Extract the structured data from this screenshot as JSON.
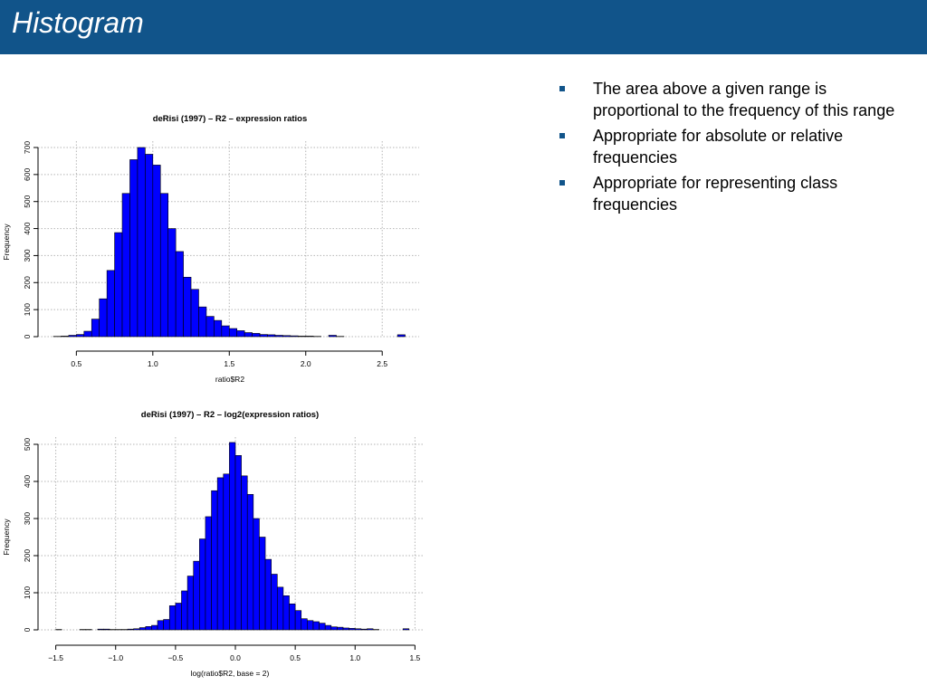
{
  "slide": {
    "title": "Histogram",
    "accent_color": "#11548a",
    "bullets": [
      "The area above a given range is proportional to the frequency of this range",
      "Appropriate for absolute or relative frequencies",
      "Appropriate for representing class frequencies"
    ]
  },
  "chart_data": [
    {
      "type": "bar",
      "subtype": "histogram",
      "title": "deRisi (1997) – R2 – expression ratios",
      "xlabel": "ratio$R2",
      "ylabel": "Frequency",
      "xlim": [
        0.35,
        2.7
      ],
      "ylim": [
        0,
        700
      ],
      "xticks": [
        0.5,
        1.0,
        1.5,
        2.0,
        2.5
      ],
      "xtick_labels": [
        "0.5",
        "1.0",
        "1.5",
        "2.0",
        "2.5"
      ],
      "yticks": [
        0,
        100,
        200,
        300,
        400,
        500,
        600,
        700
      ],
      "ytick_labels": [
        "0",
        "100",
        "200",
        "300",
        "400",
        "500",
        "600",
        "700"
      ],
      "grid": true,
      "bar_color": "#0000ff",
      "bin_width": 0.05,
      "bin_starts": [
        0.35,
        0.4,
        0.45,
        0.5,
        0.55,
        0.6,
        0.65,
        0.7,
        0.75,
        0.8,
        0.85,
        0.9,
        0.95,
        1.0,
        1.05,
        1.1,
        1.15,
        1.2,
        1.25,
        1.3,
        1.35,
        1.4,
        1.45,
        1.5,
        1.55,
        1.6,
        1.65,
        1.7,
        1.75,
        1.8,
        1.85,
        1.9,
        1.95,
        2.0,
        2.05,
        2.1,
        2.15,
        2.2,
        2.25,
        2.3,
        2.35,
        2.4,
        2.45,
        2.5,
        2.55,
        2.6
      ],
      "values": [
        1,
        2,
        5,
        8,
        20,
        65,
        140,
        245,
        385,
        530,
        655,
        700,
        675,
        635,
        530,
        400,
        315,
        220,
        175,
        110,
        75,
        60,
        40,
        30,
        22,
        15,
        12,
        8,
        7,
        5,
        4,
        3,
        2,
        2,
        1,
        0,
        5,
        1,
        0,
        0,
        0,
        0,
        0,
        0,
        0,
        7
      ]
    },
    {
      "type": "bar",
      "subtype": "histogram",
      "title": "deRisi (1997) – R2 – log2(expression ratios)",
      "xlabel": "log(ratio$R2, base = 2)",
      "ylabel": "Frequency",
      "xlim": [
        -1.55,
        1.55
      ],
      "ylim": [
        0,
        500
      ],
      "xticks": [
        -1.5,
        -1.0,
        -0.5,
        0.0,
        0.5,
        1.0,
        1.5
      ],
      "xtick_labels": [
        "−1.5",
        "−1.0",
        "−0.5",
        "0.0",
        "0.5",
        "1.0",
        "1.5"
      ],
      "yticks": [
        0,
        100,
        200,
        300,
        400,
        500
      ],
      "ytick_labels": [
        "0",
        "100",
        "200",
        "300",
        "400",
        "500"
      ],
      "grid": true,
      "bar_color": "#0000ff",
      "bin_width": 0.05,
      "bin_starts": [
        -1.5,
        -1.45,
        -1.4,
        -1.35,
        -1.3,
        -1.25,
        -1.2,
        -1.15,
        -1.1,
        -1.05,
        -1.0,
        -0.95,
        -0.9,
        -0.85,
        -0.8,
        -0.75,
        -0.7,
        -0.65,
        -0.6,
        -0.55,
        -0.5,
        -0.45,
        -0.4,
        -0.35,
        -0.3,
        -0.25,
        -0.2,
        -0.15,
        -0.1,
        -0.05,
        0.0,
        0.05,
        0.1,
        0.15,
        0.2,
        0.25,
        0.3,
        0.35,
        0.4,
        0.45,
        0.5,
        0.55,
        0.6,
        0.65,
        0.7,
        0.75,
        0.8,
        0.85,
        0.9,
        0.95,
        1.0,
        1.05,
        1.1,
        1.15,
        1.2,
        1.25,
        1.3,
        1.35,
        1.4
      ],
      "values": [
        1,
        0,
        0,
        0,
        1,
        1,
        0,
        2,
        2,
        1,
        1,
        1,
        2,
        3,
        6,
        9,
        12,
        25,
        28,
        65,
        72,
        105,
        145,
        185,
        245,
        305,
        375,
        410,
        420,
        505,
        470,
        415,
        365,
        300,
        250,
        190,
        150,
        115,
        92,
        70,
        52,
        30,
        25,
        22,
        18,
        12,
        8,
        7,
        5,
        4,
        3,
        2,
        3,
        1,
        0,
        0,
        0,
        0,
        3
      ]
    }
  ]
}
